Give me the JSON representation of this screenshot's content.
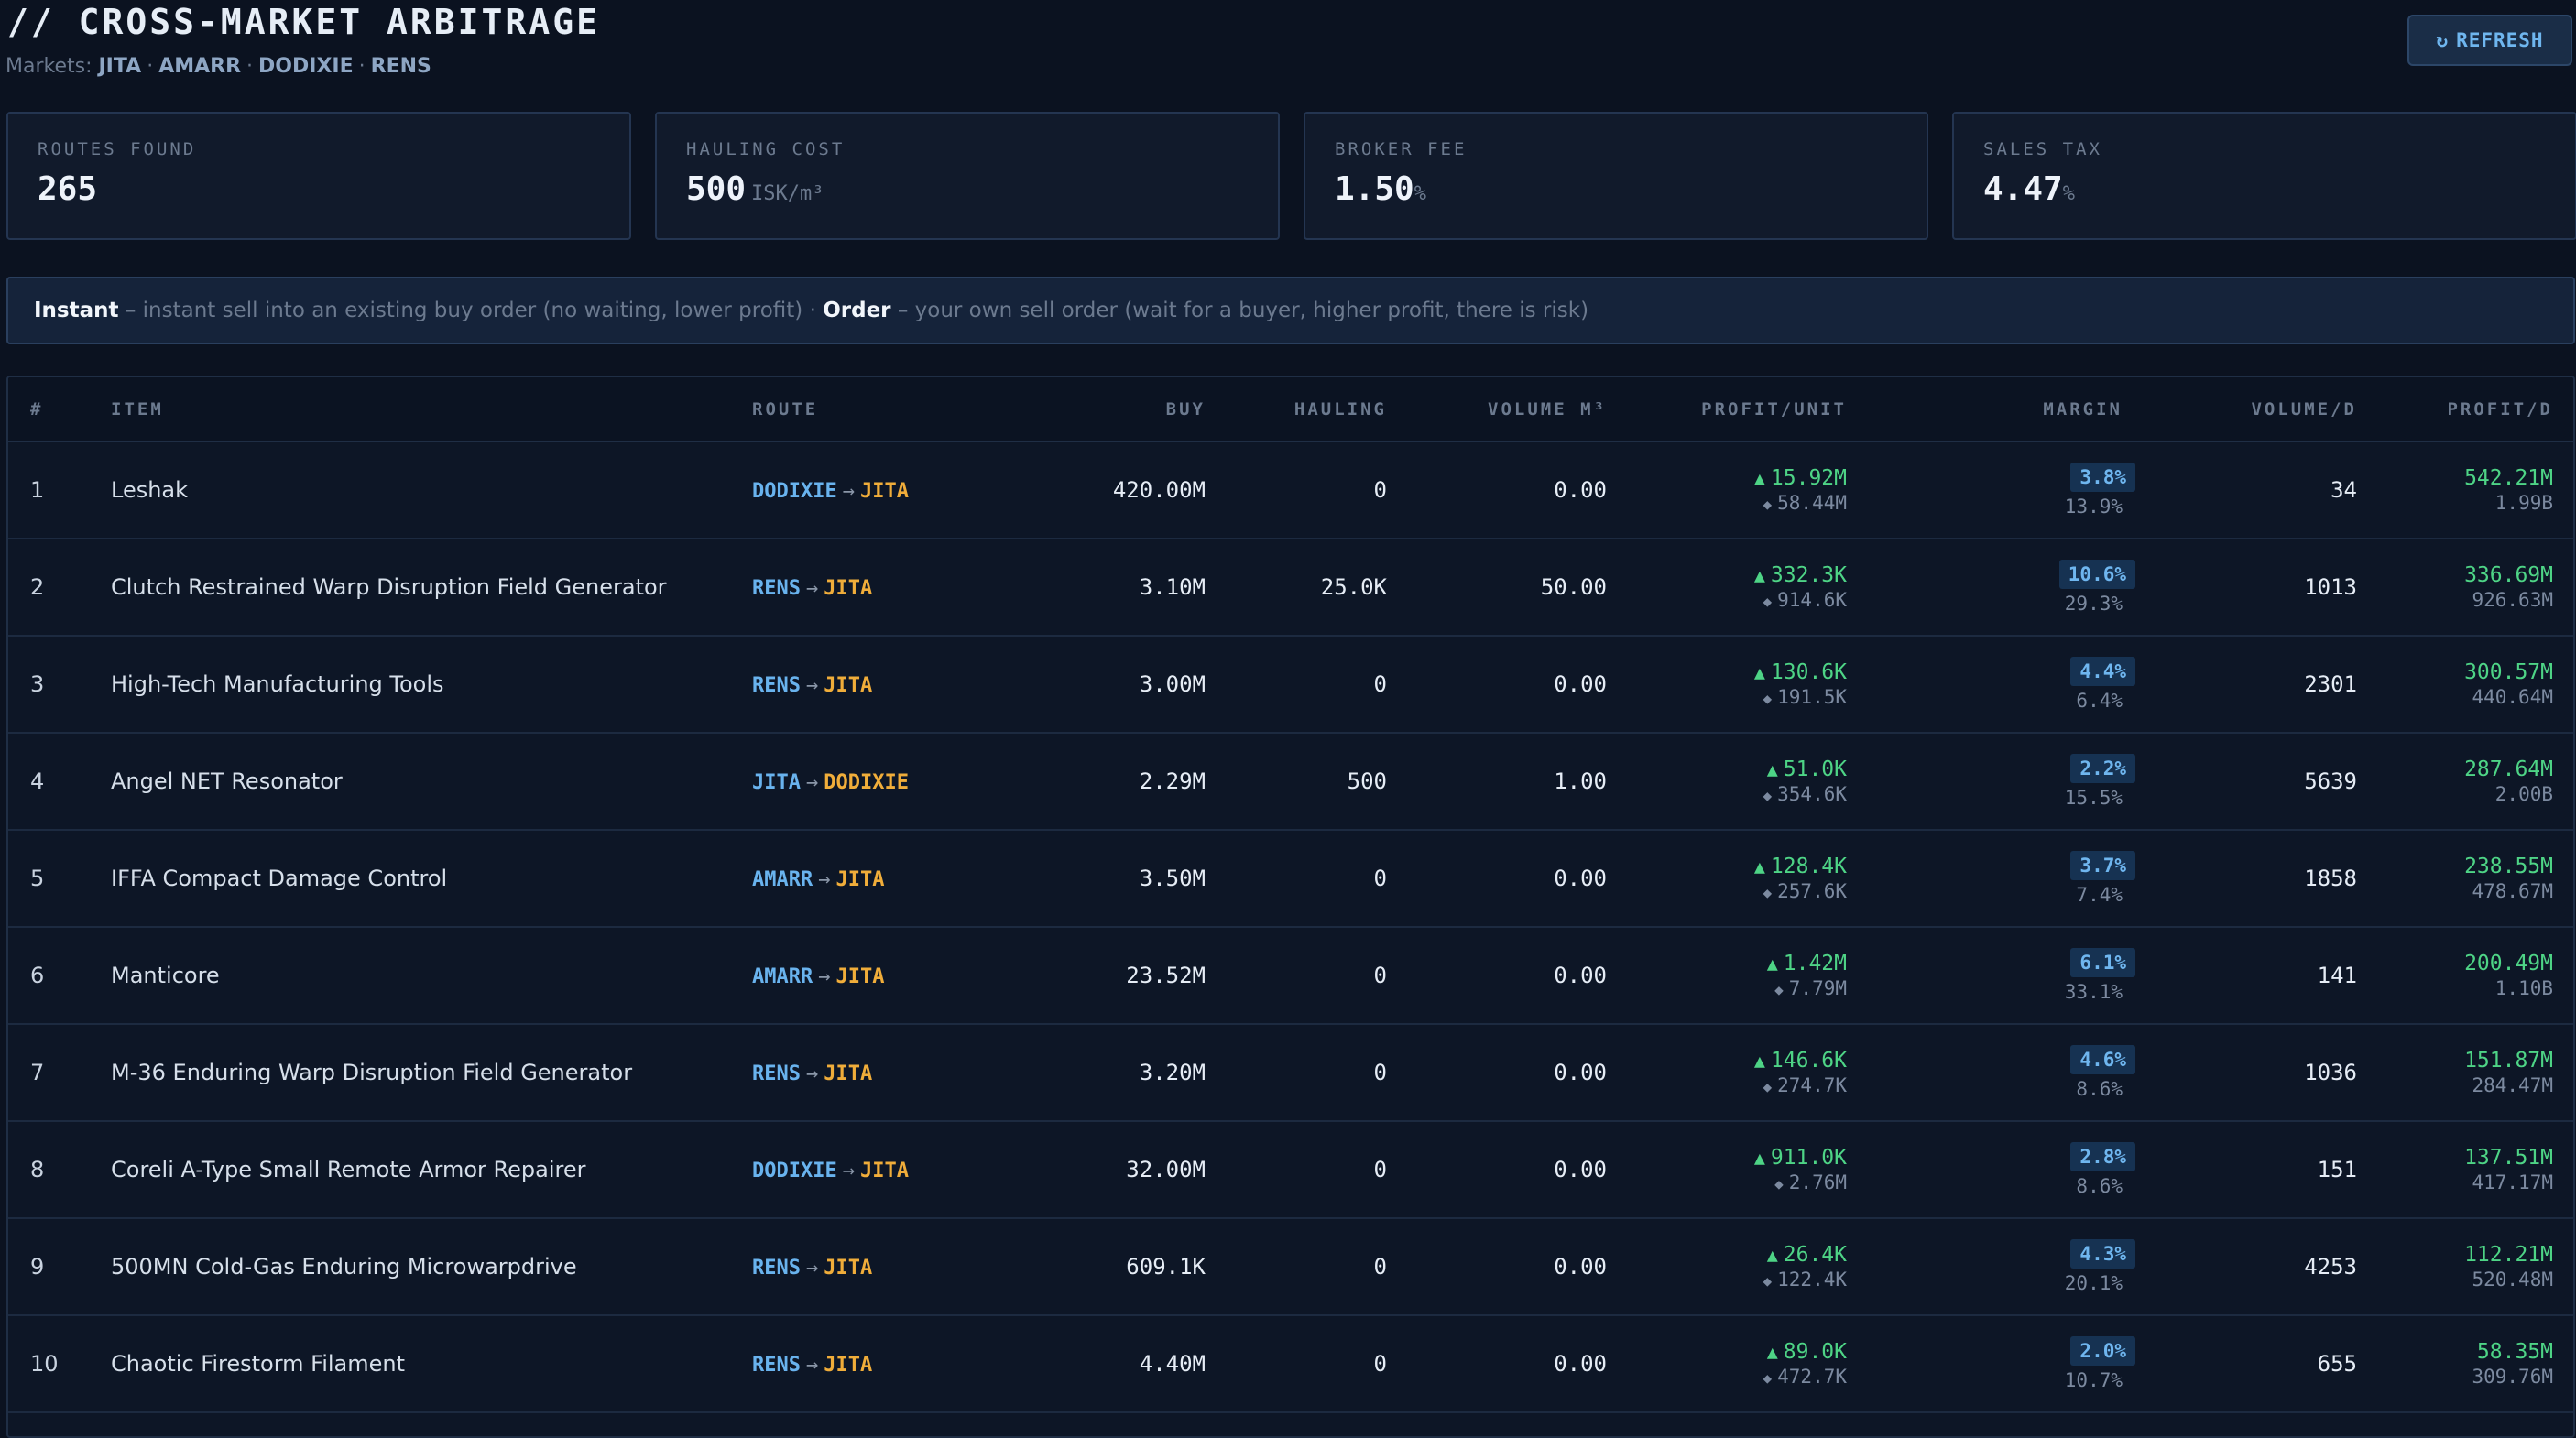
{
  "header": {
    "title": "// CROSS-MARKET ARBITRAGE",
    "markets_label": "Markets:",
    "markets": [
      "JITA",
      "AMARR",
      "DODIXIE",
      "RENS"
    ],
    "refresh_label": "REFRESH",
    "refresh_icon": "refresh-icon"
  },
  "stats": {
    "routes": {
      "label": "ROUTES FOUND",
      "value": "265",
      "unit": ""
    },
    "hauling": {
      "label": "HAULING COST",
      "value": "500",
      "unit": "ISK/m³"
    },
    "broker": {
      "label": "BROKER FEE",
      "value": "1.50",
      "unit": "%"
    },
    "tax": {
      "label": "SALES TAX",
      "value": "4.47",
      "unit": "%"
    }
  },
  "banner": {
    "instant_label": "Instant",
    "instant_text": " – instant sell into an existing buy order (no waiting, lower profit) · ",
    "order_label": "Order",
    "order_text": " – your own sell order (wait for a buyer, higher profit, there is risk)"
  },
  "table": {
    "headers": {
      "idx": "#",
      "item": "ITEM",
      "route": "ROUTE",
      "buy": "BUY",
      "hauling": "HAULING",
      "volume": "VOLUME M³",
      "profit_unit": "PROFIT/UNIT",
      "margin": "MARGIN",
      "volume_d": "VOLUME/D",
      "profit_d": "PROFIT/D"
    },
    "arrow": "→",
    "rows": [
      {
        "idx": "1",
        "item": "Leshak",
        "from": "DODIXIE",
        "to": "JITA",
        "buy": "420.00M",
        "hauling": "0",
        "volume": "0.00",
        "pu_instant": "15.92M",
        "pu_order": "58.44M",
        "margin": "3.8%",
        "margin_order": "13.9%",
        "volume_d": "34",
        "pd_instant": "542.21M",
        "pd_order": "1.99B"
      },
      {
        "idx": "2",
        "item": "Clutch Restrained Warp Disruption Field Generator",
        "from": "RENS",
        "to": "JITA",
        "buy": "3.10M",
        "hauling": "25.0K",
        "volume": "50.00",
        "pu_instant": "332.3K",
        "pu_order": "914.6K",
        "margin": "10.6%",
        "margin_order": "29.3%",
        "volume_d": "1013",
        "pd_instant": "336.69M",
        "pd_order": "926.63M"
      },
      {
        "idx": "3",
        "item": "High-Tech Manufacturing Tools",
        "from": "RENS",
        "to": "JITA",
        "buy": "3.00M",
        "hauling": "0",
        "volume": "0.00",
        "pu_instant": "130.6K",
        "pu_order": "191.5K",
        "margin": "4.4%",
        "margin_order": "6.4%",
        "volume_d": "2301",
        "pd_instant": "300.57M",
        "pd_order": "440.64M"
      },
      {
        "idx": "4",
        "item": "Angel NET Resonator",
        "from": "JITA",
        "to": "DODIXIE",
        "buy": "2.29M",
        "hauling": "500",
        "volume": "1.00",
        "pu_instant": "51.0K",
        "pu_order": "354.6K",
        "margin": "2.2%",
        "margin_order": "15.5%",
        "volume_d": "5639",
        "pd_instant": "287.64M",
        "pd_order": "2.00B"
      },
      {
        "idx": "5",
        "item": "IFFA Compact Damage Control",
        "from": "AMARR",
        "to": "JITA",
        "buy": "3.50M",
        "hauling": "0",
        "volume": "0.00",
        "pu_instant": "128.4K",
        "pu_order": "257.6K",
        "margin": "3.7%",
        "margin_order": "7.4%",
        "volume_d": "1858",
        "pd_instant": "238.55M",
        "pd_order": "478.67M"
      },
      {
        "idx": "6",
        "item": "Manticore",
        "from": "AMARR",
        "to": "JITA",
        "buy": "23.52M",
        "hauling": "0",
        "volume": "0.00",
        "pu_instant": "1.42M",
        "pu_order": "7.79M",
        "margin": "6.1%",
        "margin_order": "33.1%",
        "volume_d": "141",
        "pd_instant": "200.49M",
        "pd_order": "1.10B"
      },
      {
        "idx": "7",
        "item": "M-36 Enduring Warp Disruption Field Generator",
        "from": "RENS",
        "to": "JITA",
        "buy": "3.20M",
        "hauling": "0",
        "volume": "0.00",
        "pu_instant": "146.6K",
        "pu_order": "274.7K",
        "margin": "4.6%",
        "margin_order": "8.6%",
        "volume_d": "1036",
        "pd_instant": "151.87M",
        "pd_order": "284.47M"
      },
      {
        "idx": "8",
        "item": "Coreli A-Type Small Remote Armor Repairer",
        "from": "DODIXIE",
        "to": "JITA",
        "buy": "32.00M",
        "hauling": "0",
        "volume": "0.00",
        "pu_instant": "911.0K",
        "pu_order": "2.76M",
        "margin": "2.8%",
        "margin_order": "8.6%",
        "volume_d": "151",
        "pd_instant": "137.51M",
        "pd_order": "417.17M"
      },
      {
        "idx": "9",
        "item": "500MN Cold-Gas Enduring Microwarpdrive",
        "from": "RENS",
        "to": "JITA",
        "buy": "609.1K",
        "hauling": "0",
        "volume": "0.00",
        "pu_instant": "26.4K",
        "pu_order": "122.4K",
        "margin": "4.3%",
        "margin_order": "20.1%",
        "volume_d": "4253",
        "pd_instant": "112.21M",
        "pd_order": "520.48M"
      },
      {
        "idx": "10",
        "item": "Chaotic Firestorm Filament",
        "from": "RENS",
        "to": "JITA",
        "buy": "4.40M",
        "hauling": "0",
        "volume": "0.00",
        "pu_instant": "89.0K",
        "pu_order": "472.7K",
        "margin": "2.0%",
        "margin_order": "10.7%",
        "volume_d": "655",
        "pd_instant": "58.35M",
        "pd_order": "309.76M"
      }
    ]
  },
  "colors": {
    "background": "#0b1220",
    "route_from": "#69b3ee",
    "route_to": "#f0ad3a",
    "profit": "#4ed486",
    "margin_badge": "#6fb6ef"
  }
}
